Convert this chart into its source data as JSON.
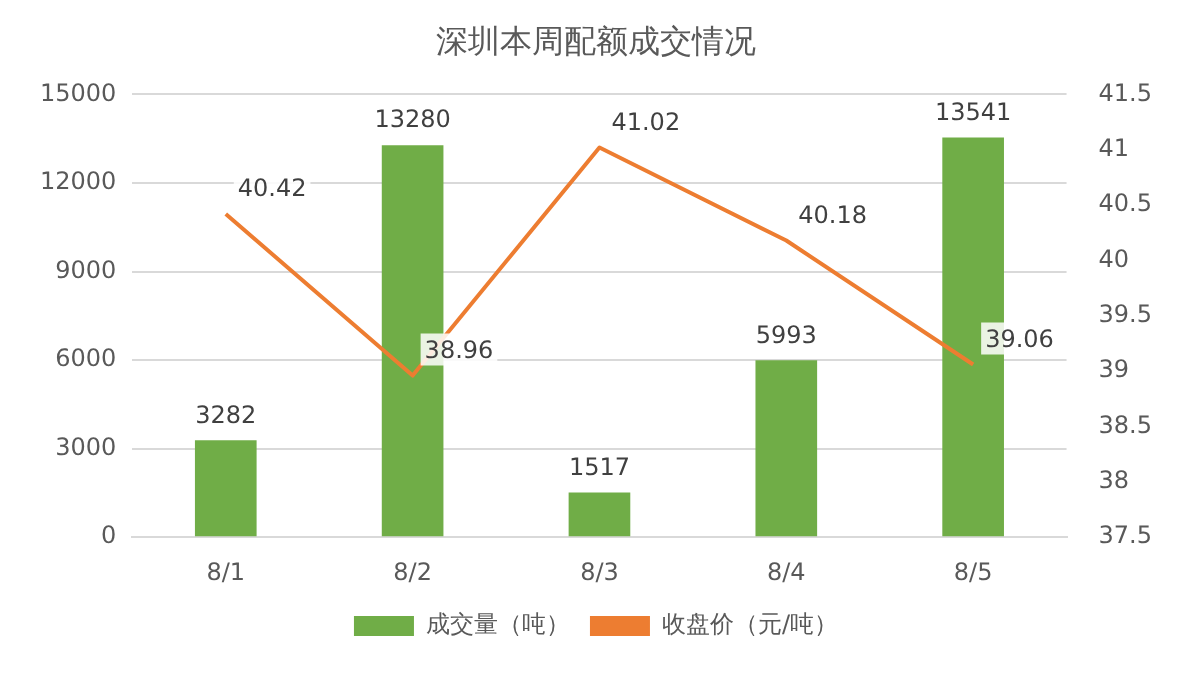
{
  "chart_data": {
    "type": "bar",
    "title": "深圳本周配额成交情况",
    "categories": [
      "8/1",
      "8/2",
      "8/3",
      "8/4",
      "8/5"
    ],
    "series": [
      {
        "name": "成交量（吨）",
        "color": "#70ad47",
        "values": [
          3282,
          13280,
          1517,
          5993,
          13541
        ]
      },
      {
        "name": "收盘价（元/吨）",
        "type": "line",
        "axis": "y2",
        "color": "#ed7d31",
        "values": [
          40.42,
          38.96,
          41.02,
          40.18,
          39.06
        ]
      }
    ],
    "ylim": [
      0,
      15000
    ],
    "yticks": [
      0,
      3000,
      6000,
      9000,
      12000,
      15000
    ],
    "y2lim": [
      37.5,
      41.5
    ],
    "y2ticks": [
      37.5,
      38,
      38.5,
      39,
      39.5,
      40,
      40.5,
      41,
      41.5
    ],
    "grid": "y",
    "legend": "bottom",
    "data_labels": true,
    "marker": "none"
  }
}
